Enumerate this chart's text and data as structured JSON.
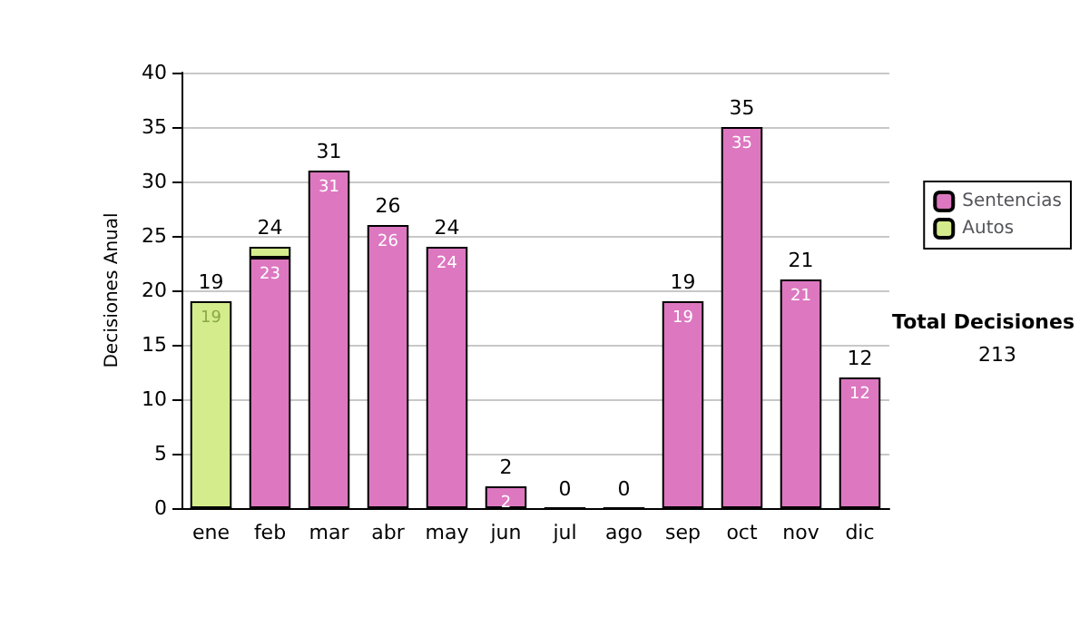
{
  "chart_data": {
    "type": "bar",
    "stacked": true,
    "ylabel": "Decisiones Anual",
    "categories": [
      "ene",
      "feb",
      "mar",
      "abr",
      "may",
      "jun",
      "jul",
      "ago",
      "sep",
      "oct",
      "nov",
      "dic"
    ],
    "series": [
      {
        "name": "Sentencias",
        "color": "#dd77c0",
        "values": [
          0,
          23,
          31,
          26,
          24,
          2,
          0,
          0,
          19,
          35,
          21,
          12
        ],
        "value_labels": [
          null,
          "23",
          "31",
          "26",
          "24",
          "2",
          null,
          null,
          "19",
          "35",
          "21",
          "12"
        ]
      },
      {
        "name": "Autos",
        "color": "#d4ec8c",
        "values": [
          19,
          1,
          null,
          null,
          null,
          null,
          null,
          null,
          null,
          null,
          null,
          null
        ],
        "value_labels": [
          "19",
          null,
          null,
          null,
          null,
          null,
          null,
          null,
          null,
          null,
          null,
          null
        ]
      }
    ],
    "totals": [
      "19",
      "24",
      "31",
      "26",
      "24",
      "2",
      "0",
      "0",
      "19",
      "35",
      "21",
      "12"
    ],
    "ylim": [
      0,
      40
    ],
    "yticks": [
      0,
      5,
      10,
      15,
      20,
      25,
      30,
      35,
      40
    ],
    "grid": "y",
    "legend": "right",
    "annotations": [
      "Total Decisiones",
      "213"
    ]
  }
}
